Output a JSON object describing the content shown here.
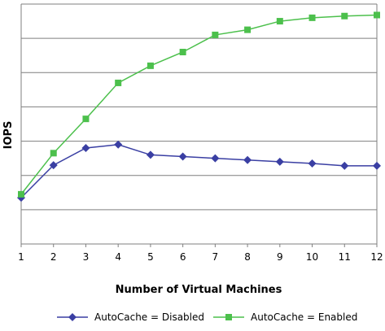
{
  "chart_data": {
    "type": "line",
    "title": "",
    "xlabel": "Number of Virtual Machines",
    "ylabel": "IOPS",
    "x": [
      1,
      2,
      3,
      4,
      5,
      6,
      7,
      8,
      9,
      10,
      11,
      12
    ],
    "x_tick_labels": [
      "1",
      "2",
      "3",
      "4",
      "5",
      "6",
      "7",
      "8",
      "9",
      "10",
      "11",
      "12"
    ],
    "y_tick_labels": [],
    "ylim": [
      0,
      7
    ],
    "y_gridlines": [
      1,
      2,
      3,
      4,
      5,
      6,
      7
    ],
    "grid": true,
    "legend_position": "bottom",
    "series": [
      {
        "name": "AutoCache = Disabled",
        "color": "#3a3fa3",
        "marker": "diamond",
        "values": [
          1.35,
          2.3,
          2.8,
          2.9,
          2.6,
          2.55,
          2.5,
          2.45,
          2.4,
          2.35,
          2.28,
          2.28
        ]
      },
      {
        "name": "AutoCache = Enabled",
        "color": "#4cc04c",
        "marker": "square",
        "values": [
          1.45,
          2.65,
          3.65,
          4.7,
          5.2,
          5.6,
          6.1,
          6.25,
          6.5,
          6.6,
          6.65,
          6.68
        ]
      }
    ]
  }
}
